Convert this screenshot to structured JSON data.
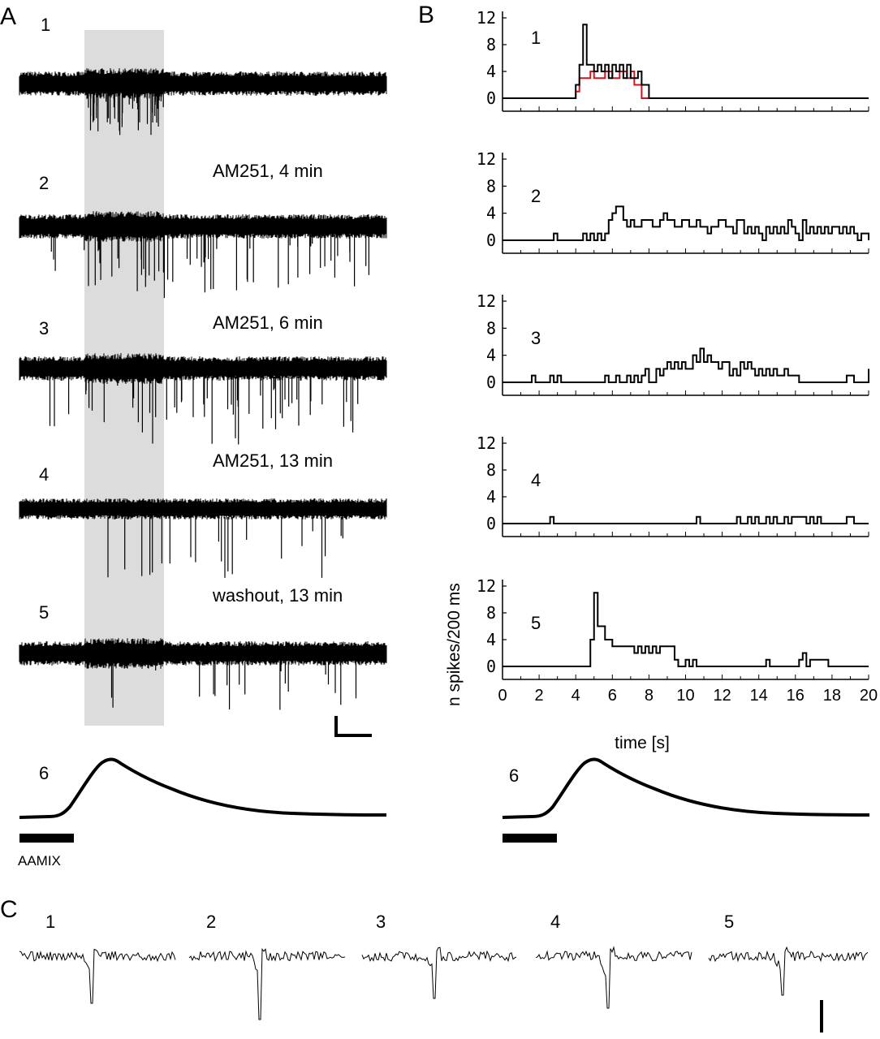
{
  "panels": {
    "A": {
      "letter": "A",
      "traces": [
        {
          "num": "1",
          "label": ""
        },
        {
          "num": "2",
          "label": "AM251, 4 min"
        },
        {
          "num": "3",
          "label": "AM251, 6 min"
        },
        {
          "num": "4",
          "label": "AM251, 13 min"
        },
        {
          "num": "5",
          "label": "washout, 13 min"
        }
      ],
      "transient_num": "6",
      "stimulus_label": "AAMIX"
    },
    "B": {
      "letter": "B",
      "transient_num": "6"
    },
    "C": {
      "letter": "C",
      "spike_nums": [
        "1",
        "2",
        "3",
        "4",
        "5"
      ]
    }
  },
  "chart_data": {
    "type": "line",
    "subtype": "step-histogram",
    "ylabel": "n spikes/200 ms",
    "xlabel": "time [s]",
    "xlim": [
      0,
      20
    ],
    "ylim": [
      0,
      12
    ],
    "xticks": [
      0,
      2,
      4,
      6,
      8,
      10,
      12,
      14,
      16,
      18,
      20
    ],
    "yticks": [
      0,
      4,
      8,
      12
    ],
    "colors": {
      "total": "#000000",
      "red_overlay": "#d4141c"
    },
    "histograms": [
      {
        "num": "1",
        "series": [
          {
            "name": "",
            "color": "#000000",
            "x": [
              0,
              4.0,
              4.2,
              4.4,
              4.6,
              5.0,
              5.2,
              5.4,
              5.6,
              5.8,
              6.0,
              6.2,
              6.4,
              6.6,
              6.8,
              7.0,
              7.4,
              7.6,
              8.0,
              20
            ],
            "y": [
              0,
              2,
              5,
              11,
              5,
              4,
              5,
              4,
              5,
              3,
              5,
              4,
              5,
              3,
              5,
              3,
              4,
              2,
              0,
              0
            ]
          },
          {
            "name": "",
            "color": "#d4141c",
            "x": [
              0,
              3.8,
              4.0,
              4.2,
              4.6,
              4.8,
              5.0,
              5.6,
              6.0,
              6.4,
              6.8,
              7.0,
              7.2,
              7.6,
              20
            ],
            "y": [
              0,
              0,
              1,
              3,
              3,
              4,
              3,
              4,
              3,
              4,
              3,
              4,
              2,
              0,
              0
            ]
          }
        ]
      },
      {
        "num": "2",
        "series": [
          {
            "name": "",
            "color": "#000000",
            "x": [
              0,
              2.8,
              3.0,
              4.4,
              4.6,
              4.8,
              5.0,
              5.2,
              5.4,
              5.6,
              5.8,
              6.0,
              6.2,
              6.6,
              6.8,
              7.0,
              7.2,
              7.6,
              8.2,
              8.6,
              8.8,
              9.0,
              9.4,
              9.8,
              10.2,
              10.6,
              10.8,
              11.2,
              11.4,
              11.8,
              12.2,
              12.6,
              12.8,
              13.2,
              13.4,
              13.6,
              13.8,
              14.0,
              14.2,
              14.4,
              14.6,
              14.8,
              15.0,
              15.2,
              15.4,
              15.6,
              15.8,
              16.0,
              16.2,
              16.4,
              16.6,
              16.8,
              17.0,
              17.2,
              17.4,
              17.6,
              17.8,
              18.0,
              18.4,
              18.6,
              18.8,
              19.0,
              19.2,
              19.4,
              19.6,
              20
            ],
            "y": [
              0,
              1,
              0,
              1,
              0,
              1,
              0,
              1,
              0,
              1,
              3,
              4,
              5,
              3,
              2,
              3,
              2,
              3,
              2,
              3,
              4,
              3,
              2,
              3,
              2,
              3,
              2,
              1,
              2,
              3,
              2,
              1,
              3,
              1,
              2,
              1,
              2,
              1,
              0,
              2,
              1,
              2,
              1,
              2,
              1,
              3,
              2,
              1,
              0,
              3,
              1,
              2,
              1,
              2,
              1,
              2,
              1,
              2,
              1,
              2,
              1,
              2,
              1,
              0,
              1,
              0
            ]
          }
        ]
      },
      {
        "num": "3",
        "series": [
          {
            "name": "",
            "color": "#000000",
            "x": [
              0,
              1.6,
              1.8,
              2.6,
              2.8,
              3.0,
              3.2,
              5.6,
              5.8,
              6.2,
              6.4,
              6.8,
              7.0,
              7.2,
              7.4,
              7.6,
              7.8,
              8.0,
              8.4,
              8.6,
              8.8,
              9.0,
              9.2,
              9.4,
              9.6,
              9.8,
              10.0,
              10.4,
              10.6,
              10.8,
              11.0,
              11.2,
              11.4,
              11.8,
              12.0,
              12.4,
              12.6,
              12.8,
              13.0,
              13.2,
              13.4,
              13.6,
              13.8,
              14.0,
              14.2,
              14.4,
              14.6,
              14.8,
              15.0,
              15.4,
              15.6,
              16.2,
              18.8,
              19.2,
              20
            ],
            "y": [
              0,
              1,
              0,
              1,
              0,
              1,
              0,
              1,
              0,
              1,
              0,
              1,
              0,
              1,
              0,
              1,
              2,
              0,
              2,
              1,
              2,
              3,
              2,
              3,
              2,
              3,
              2,
              4,
              3,
              5,
              3,
              4,
              3,
              2,
              3,
              1,
              2,
              1,
              3,
              2,
              3,
              2,
              1,
              2,
              1,
              2,
              1,
              2,
              1,
              2,
              1,
              0,
              1,
              0,
              2
            ]
          }
        ]
      },
      {
        "num": "4",
        "series": [
          {
            "name": "",
            "color": "#000000",
            "x": [
              0,
              2.6,
              2.8,
              10.6,
              10.8,
              12.8,
              13.0,
              13.4,
              13.6,
              13.8,
              14.0,
              14.4,
              14.6,
              14.8,
              15.0,
              15.4,
              15.6,
              15.8,
              16.6,
              16.8,
              17.0,
              17.2,
              17.4,
              18.8,
              19.2,
              20
            ],
            "y": [
              0,
              1,
              0,
              1,
              0,
              1,
              0,
              1,
              0,
              1,
              0,
              1,
              0,
              1,
              0,
              1,
              0,
              1,
              0,
              1,
              0,
              1,
              0,
              1,
              0,
              0
            ]
          }
        ]
      },
      {
        "num": "5",
        "series": [
          {
            "name": "",
            "color": "#000000",
            "x": [
              0,
              4.6,
              4.8,
              5.0,
              5.2,
              5.4,
              5.6,
              6.0,
              7.0,
              7.2,
              7.4,
              7.6,
              7.8,
              8.0,
              8.2,
              8.4,
              8.6,
              8.8,
              9.4,
              9.6,
              10.0,
              10.2,
              10.4,
              10.6,
              14.4,
              14.6,
              16.2,
              16.4,
              16.6,
              16.8,
              17.8,
              18.2,
              20
            ],
            "y": [
              0,
              0,
              4,
              11,
              6,
              6,
              4,
              3,
              3,
              2,
              3,
              2,
              3,
              2,
              3,
              2,
              3,
              3,
              1,
              0,
              1,
              0,
              1,
              0,
              1,
              0,
              1,
              2,
              0,
              1,
              0,
              0,
              0
            ]
          }
        ]
      }
    ]
  }
}
